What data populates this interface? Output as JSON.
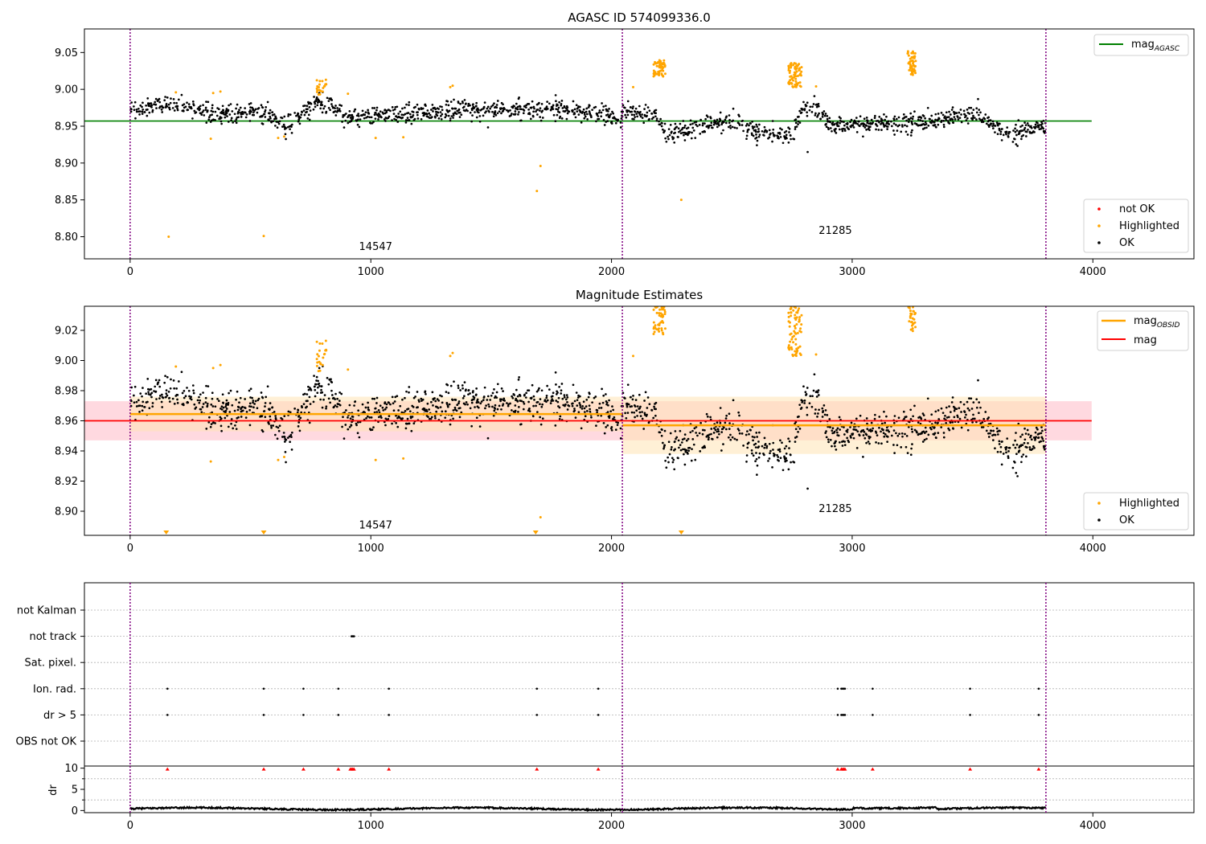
{
  "colors": {
    "ok": "#000000",
    "highlighted": "#ffa500",
    "not_ok": "#ff0000",
    "mag_agasc": "#008000",
    "mag_obsid": "#ffa500",
    "mag": "#ff0000",
    "boundary": "#800080",
    "band_mag": "#ffc0cb",
    "band_obsid": "#ffe4b5"
  },
  "chart_data": [
    {
      "type": "scatter",
      "title": "AGASC ID 574099336.0",
      "xlim": [
        -190,
        4420
      ],
      "ylim": [
        8.77,
        9.082
      ],
      "x_ticks": [
        0,
        1000,
        2000,
        3000,
        4000
      ],
      "y_ticks": [
        8.8,
        8.85,
        8.9,
        8.95,
        9.0,
        9.05
      ],
      "y_tick_labels": [
        "8.80",
        "8.85",
        "8.90",
        "8.95",
        "9.00",
        "9.05"
      ],
      "obsid_boundaries": [
        0,
        2045,
        3805
      ],
      "obsid_labels": [
        {
          "text": "14547",
          "x": 1020,
          "y": 8.782
        },
        {
          "text": "21285",
          "x": 2930,
          "y": 8.804
        }
      ],
      "mag_agasc": 8.957,
      "mag_agasc_span": [
        -190,
        3995
      ],
      "series": [
        {
          "name": "OK",
          "segments": [
            {
              "x": [
                0,
                2045
              ],
              "base": 8.966,
              "drift": [
                [
                  0,
                  0.006
                ],
                [
                  180,
                  0.014
                ],
                [
                  350,
                  0.0
                ],
                [
                  560,
                  0.004
                ],
                [
                  650,
                  -0.018
                ],
                [
                  780,
                  0.018
                ],
                [
                  900,
                  -0.004
                ],
                [
                  1300,
                  0.004
                ],
                [
                  1800,
                  0.008
                ],
                [
                  2040,
                  -0.006
                ]
              ],
              "spread": 0.009
            },
            {
              "x": [
                2045,
                3805
              ],
              "base": 8.955,
              "drift": [
                [
                  2060,
                  0.018
                ],
                [
                  2180,
                  0.006
                ],
                [
                  2230,
                  -0.018
                ],
                [
                  2500,
                  0.004
                ],
                [
                  2600,
                  -0.014
                ],
                [
                  2750,
                  -0.018
                ],
                [
                  2790,
                  0.018
                ],
                [
                  2860,
                  0.018
                ],
                [
                  2920,
                  -0.004
                ],
                [
                  3400,
                  0.004
                ],
                [
                  3500,
                  0.014
                ],
                [
                  3650,
                  -0.016
                ],
                [
                  3800,
                  -0.004
                ]
              ],
              "spread": 0.009
            }
          ]
        },
        {
          "name": "Highlighted",
          "points": [
            [
              160,
              8.8
            ],
            [
              555,
              8.801
            ],
            [
              335,
              8.933
            ],
            [
              615,
              8.934
            ],
            [
              640,
              8.936
            ],
            [
              1020,
              8.934
            ],
            [
              1135,
              8.935
            ],
            [
              1690,
              8.862
            ],
            [
              1705,
              8.896
            ],
            [
              2290,
              8.85
            ],
            [
              905,
              8.994
            ],
            [
              345,
              8.995
            ],
            [
              1330,
              9.003
            ],
            [
              1340,
              9.005
            ],
            [
              2090,
              9.003
            ],
            [
              2850,
              9.004
            ],
            [
              190,
              8.996
            ],
            [
              375,
              8.997
            ]
          ],
          "clusters": [
            {
              "x": [
                775,
                815
              ],
              "y": [
                8.992,
                9.015
              ],
              "n": 22
            },
            {
              "x": [
                2175,
                2225
              ],
              "y": [
                9.017,
                9.04
              ],
              "n": 55
            },
            {
              "x": [
                2735,
                2790
              ],
              "y": [
                9.003,
                9.036
              ],
              "n": 70
            },
            {
              "x": [
                3230,
                3265
              ],
              "y": [
                9.018,
                9.052
              ],
              "n": 50
            }
          ]
        },
        {
          "name": "not OK",
          "points": []
        }
      ],
      "extra_points": [
        [
          2815,
          8.915
        ]
      ],
      "legend_upper": [
        "mag_AGASC"
      ],
      "legend_lower": [
        "not OK",
        "Highlighted",
        "OK"
      ]
    },
    {
      "type": "scatter",
      "title": "Magnitude Estimates",
      "xlim": [
        -190,
        4420
      ],
      "ylim": [
        8.884,
        9.036
      ],
      "x_ticks": [
        0,
        1000,
        2000,
        3000,
        4000
      ],
      "y_ticks": [
        8.9,
        8.92,
        8.94,
        8.96,
        8.98,
        9.0,
        9.02
      ],
      "y_tick_labels": [
        "8.90",
        "8.92",
        "8.94",
        "8.96",
        "8.98",
        "9.00",
        "9.02"
      ],
      "obsid_boundaries": [
        0,
        2045,
        3805
      ],
      "obsid_labels": [
        {
          "text": "14547",
          "x": 1020,
          "y": 8.8885
        },
        {
          "text": "21285",
          "x": 2930,
          "y": 8.8995
        }
      ],
      "mag": 8.96,
      "mag_band": [
        8.947,
        8.973
      ],
      "mag_span": [
        -190,
        3995
      ],
      "mag_obsid": [
        {
          "x": [
            0,
            2045
          ],
          "value": 8.9645,
          "band": [
            8.953,
            8.976
          ]
        },
        {
          "x": [
            2045,
            3805
          ],
          "value": 8.957,
          "band": [
            8.938,
            8.976
          ]
        }
      ],
      "clipped_low_markers": [
        150,
        555,
        1685,
        2290
      ],
      "legend_upper": [
        "mag_OBSID",
        "mag"
      ],
      "legend_lower": [
        "Highlighted",
        "OK"
      ]
    },
    {
      "type": "scatter",
      "title": "",
      "xlim": [
        -190,
        4420
      ],
      "flag_categories": [
        "not Kalman",
        "not track",
        "Sat. pixel.",
        "Ion. rad.",
        "dr > 5",
        "OBS not OK"
      ],
      "obsid_boundaries": [
        0,
        2045,
        3805
      ],
      "flag_points": {
        "not track": [
          920,
          925,
          930
        ],
        "Ion. rad.": [
          155,
          555,
          720,
          865,
          1075,
          1690,
          1945,
          2940,
          2955,
          2960,
          2965,
          2970,
          3085,
          3490,
          3775
        ],
        "dr > 5": [
          155,
          555,
          720,
          865,
          1075,
          1690,
          1945,
          2940,
          2955,
          2960,
          2965,
          2970,
          3085,
          3490,
          3775
        ]
      },
      "dr_panel": {
        "ylabel": "dr",
        "ylim": [
          -0.5,
          10.5
        ],
        "y_ticks": [
          0,
          5,
          10
        ],
        "y_tick_labels": [
          "0",
          "5",
          "10"
        ],
        "clipped_high": [
          155,
          555,
          720,
          865,
          915,
          920,
          925,
          930,
          1075,
          1690,
          1945,
          2940,
          2955,
          2960,
          2965,
          2970,
          3085,
          3490,
          3775
        ]
      },
      "x_ticks": [
        0,
        1000,
        2000,
        3000,
        4000
      ]
    }
  ]
}
